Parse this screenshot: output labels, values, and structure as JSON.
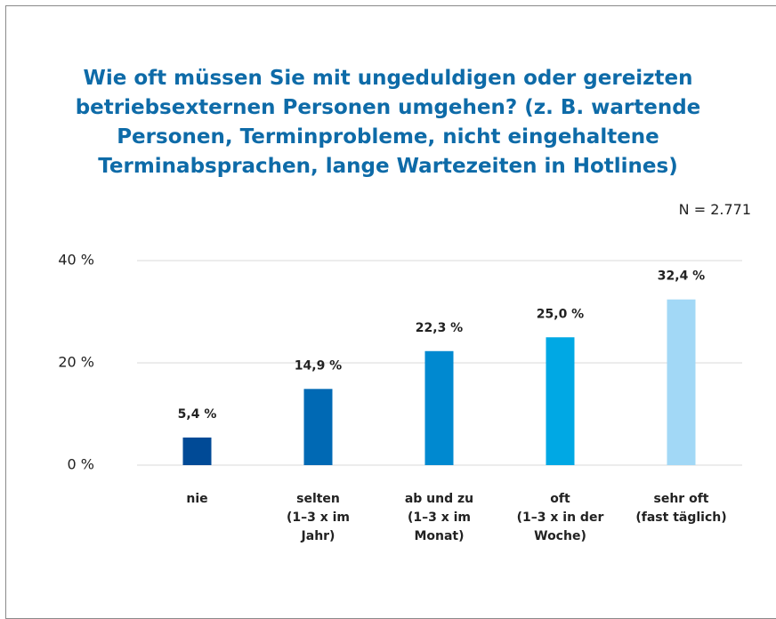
{
  "chart_data": {
    "type": "bar",
    "title": "Wie oft müssen Sie mit ungeduldigen oder gereizten betriebsexternen Personen umgehen? (z. B. wartende Personen, Terminprobleme, nicht eingehaltene Terminabsprachen, lange Wartezeiten in Hotlines)",
    "note": "N = 2.771",
    "categories": [
      "nie",
      "selten\n(1–3 x im\nJahr)",
      "ab und zu\n(1–3 x im\nMonat)",
      "oft\n(1–3 x in der\nWoche)",
      "sehr oft\n(fast täglich)"
    ],
    "values": [
      5.4,
      14.9,
      22.3,
      25.0,
      32.4
    ],
    "value_labels": [
      "5,4 %",
      "14,9 %",
      "22,3 %",
      "25,0 %",
      "32,4 %"
    ],
    "colors": [
      "#004a96",
      "#0069b4",
      "#0089d0",
      "#00a8e4",
      "#a2d8f6"
    ],
    "ylim": [
      0,
      40
    ],
    "yticks": [
      {
        "value": 0,
        "label": "0 %"
      },
      {
        "value": 20,
        "label": "20 %"
      },
      {
        "value": 40,
        "label": "40 %"
      }
    ],
    "grid": true
  }
}
